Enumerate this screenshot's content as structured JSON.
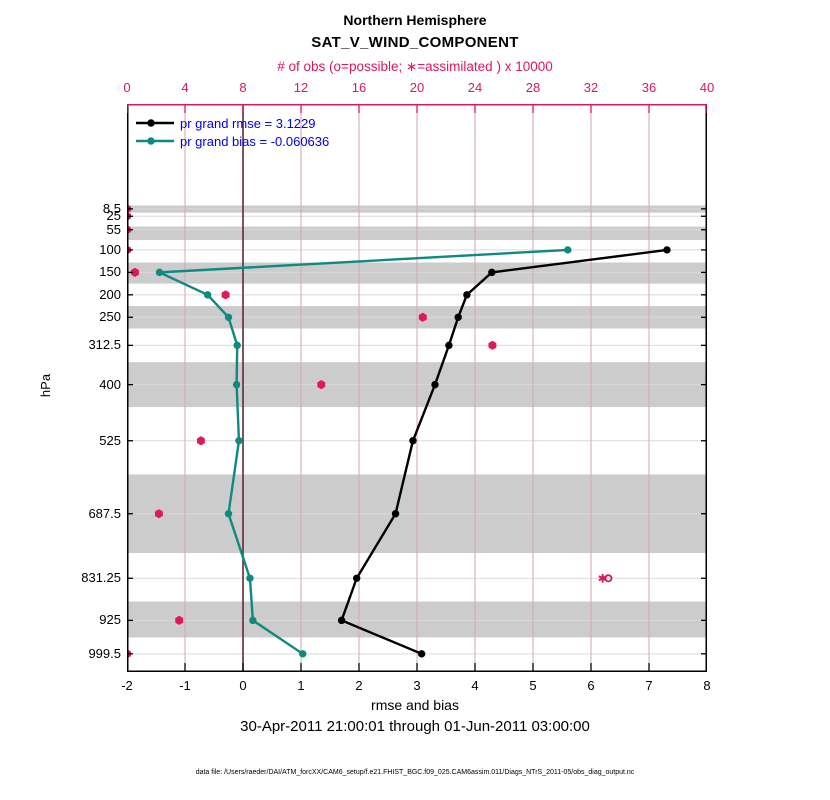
{
  "title": {
    "line1": "Northern Hemisphere",
    "line2": "SAT_V_WIND_COMPONENT"
  },
  "top_axis": {
    "label": "# of obs (o=possible; ∗=assimilated ) x 10000",
    "ticks": [
      0,
      4,
      8,
      12,
      16,
      20,
      24,
      28,
      32,
      36,
      40
    ]
  },
  "bottom_axis": {
    "label": "rmse and bias",
    "ticks": [
      -2,
      -1,
      0,
      1,
      2,
      3,
      4,
      5,
      6,
      7,
      8
    ]
  },
  "y_axis": {
    "label": "hPa",
    "tick_levels": [
      8.5,
      25,
      55,
      100,
      150,
      200,
      250,
      312.5,
      400,
      525,
      687.5,
      831.25,
      925,
      999.5
    ]
  },
  "legend": [
    {
      "label": "pr grand rmse = 3.1229",
      "series": "rmse"
    },
    {
      "label": "pr grand bias = -0.060636",
      "series": "bias"
    }
  ],
  "caption": "30-Apr-2011 21:00:01 through 01-Jun-2011 03:00:00",
  "datafile": "data file: /Users/raeder/DAI/ATM_forcXX/CAM6_setup/f.e21.FHIST_BGC.f09_025.CAM6assim.011/Diags_NTrS_2011-05/obs_diag_output.nc",
  "colors": {
    "obs_magenta": "#df1858",
    "rmse_black": "#000000",
    "bias_teal": "#0e8a80",
    "legend_text_blue": "#0000ee",
    "zero_line_maroon": "#5e2a36",
    "vertical_grid": "#d2a7b2",
    "horizontal_grid": "#d9d9d9",
    "band_gray": "#cccccc"
  },
  "chart_data": {
    "type": "line",
    "orientation": "vertical-pressure-profile",
    "title": "Northern Hemisphere SAT_V_WIND_COMPONENT",
    "xlabel": "rmse and bias",
    "ylabel": "hPa",
    "xlabel_top": "# of obs (o=possible; ∗=assimilated ) x 10000",
    "xlim_bottom": [
      -2,
      8
    ],
    "xlim_top": [
      0,
      40
    ],
    "ylim_hPa": [
      -225,
      1040
    ],
    "y_inverted_pressure": true,
    "grid": true,
    "legend_position": "top-left-inside",
    "levels_hPa": [
      8.5,
      25,
      55,
      100,
      150,
      200,
      250,
      312.5,
      400,
      525,
      687.5,
      831.25,
      925,
      999.5
    ],
    "series": [
      {
        "name": "rmse",
        "levels": [
          100,
          150,
          200,
          250,
          312.5,
          400,
          525,
          687.5,
          831.25,
          925,
          999.5
        ],
        "values": [
          7.31,
          4.29,
          3.86,
          3.71,
          3.55,
          3.31,
          2.93,
          2.63,
          1.96,
          1.7,
          3.08
        ],
        "grand_value": 3.1229
      },
      {
        "name": "bias",
        "levels": [
          100,
          150,
          200,
          250,
          312.5,
          400,
          525,
          687.5,
          831.25,
          925,
          999.5
        ],
        "values": [
          5.6,
          -1.44,
          -0.61,
          -0.25,
          -0.1,
          -0.11,
          -0.07,
          -0.25,
          0.12,
          0.17,
          1.03
        ],
        "grand_value": -0.060636
      }
    ],
    "obs_counts_x10000": {
      "levels": [
        8.5,
        25,
        55,
        100,
        150,
        200,
        250,
        312.5,
        400,
        525,
        687.5,
        831.25,
        925,
        999.5
      ],
      "possible": [
        0,
        0,
        0,
        0,
        0.55,
        6.8,
        20.4,
        25.2,
        13.4,
        5.1,
        2.2,
        33.2,
        3.6,
        0
      ],
      "assimilated": [
        0,
        0,
        0,
        0,
        0.55,
        6.8,
        20.4,
        25.2,
        13.4,
        5.1,
        2.2,
        32.8,
        3.6,
        0
      ]
    },
    "zero_reference_line_x": 0,
    "shaded_bands_hPa": [
      [
        1,
        17
      ],
      [
        48,
        78
      ],
      [
        128,
        175
      ],
      [
        225,
        275
      ],
      [
        350,
        450
      ],
      [
        600,
        775
      ],
      [
        883,
        963
      ]
    ]
  }
}
